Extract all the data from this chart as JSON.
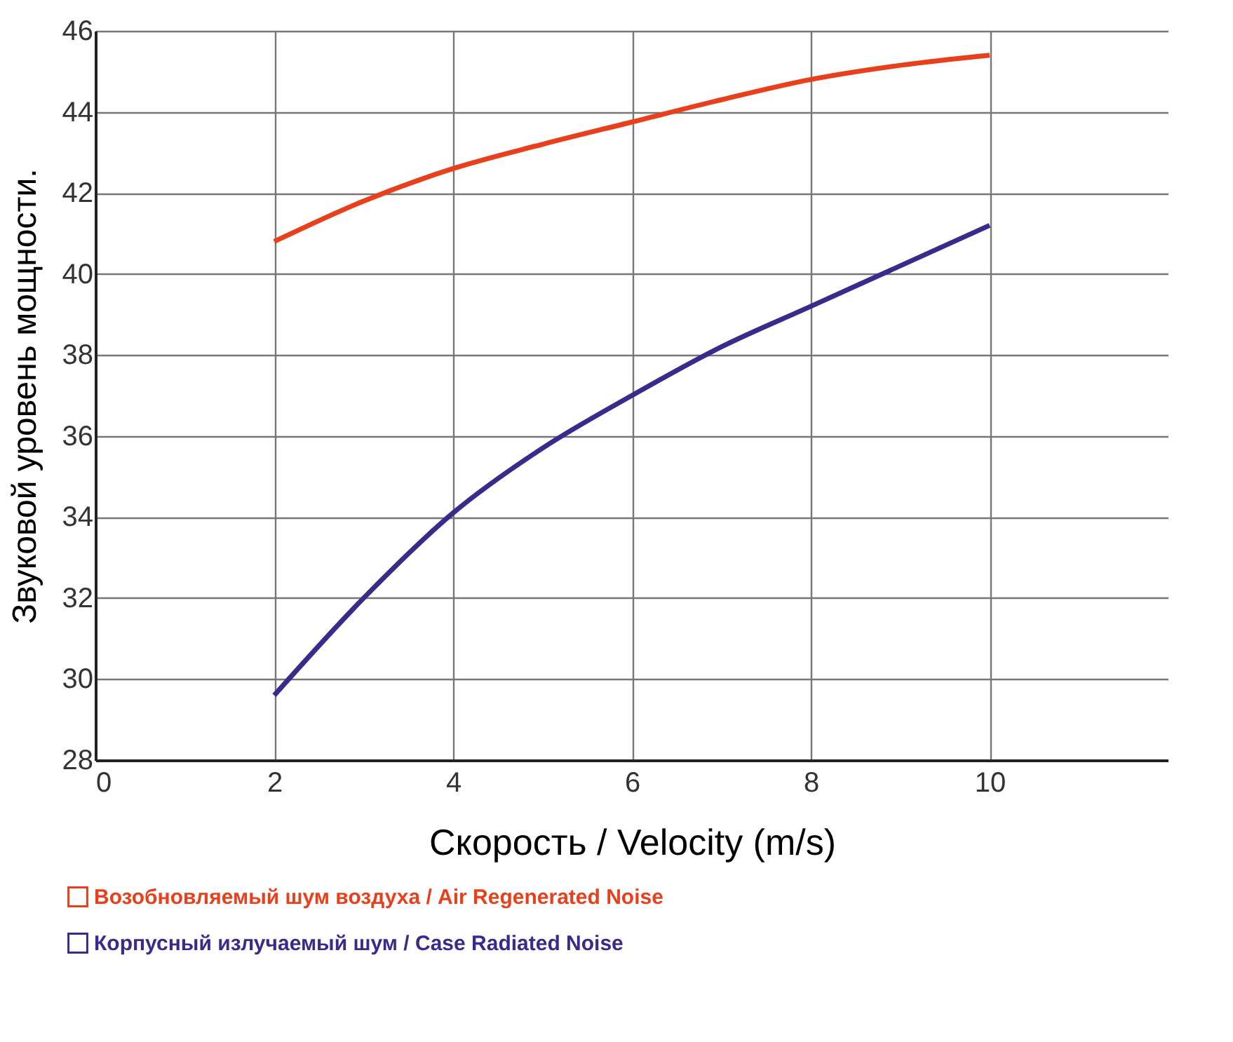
{
  "chart_data": {
    "type": "line",
    "xlabel": "Скорость / Velocity (m/s)",
    "ylabel": "Звуковой уровень мощности.",
    "x": [
      2,
      3,
      4,
      5,
      6,
      7,
      8,
      9,
      10
    ],
    "series": [
      {
        "name": "Возобновляемый шум воздуха / Air Regenerated Noise",
        "color": "#e8401c",
        "values": [
          40.8,
          41.8,
          42.6,
          43.2,
          43.75,
          44.3,
          44.8,
          45.15,
          45.4
        ]
      },
      {
        "name": "Корпусный излучаемый шум / Case Radiated Noise",
        "color": "#3b2a8c",
        "values": [
          29.6,
          32.0,
          34.1,
          35.7,
          37.0,
          38.2,
          39.2,
          40.2,
          41.2
        ]
      }
    ],
    "xlim": [
      0,
      12
    ],
    "xticks": [
      0,
      2,
      4,
      6,
      8,
      10
    ],
    "ylim": [
      28,
      46
    ],
    "yticks": [
      28,
      30,
      32,
      34,
      36,
      38,
      40,
      42,
      44,
      46
    ],
    "grid": true,
    "legend": "bottom left",
    "marker": "none",
    "line_style": "solid"
  }
}
